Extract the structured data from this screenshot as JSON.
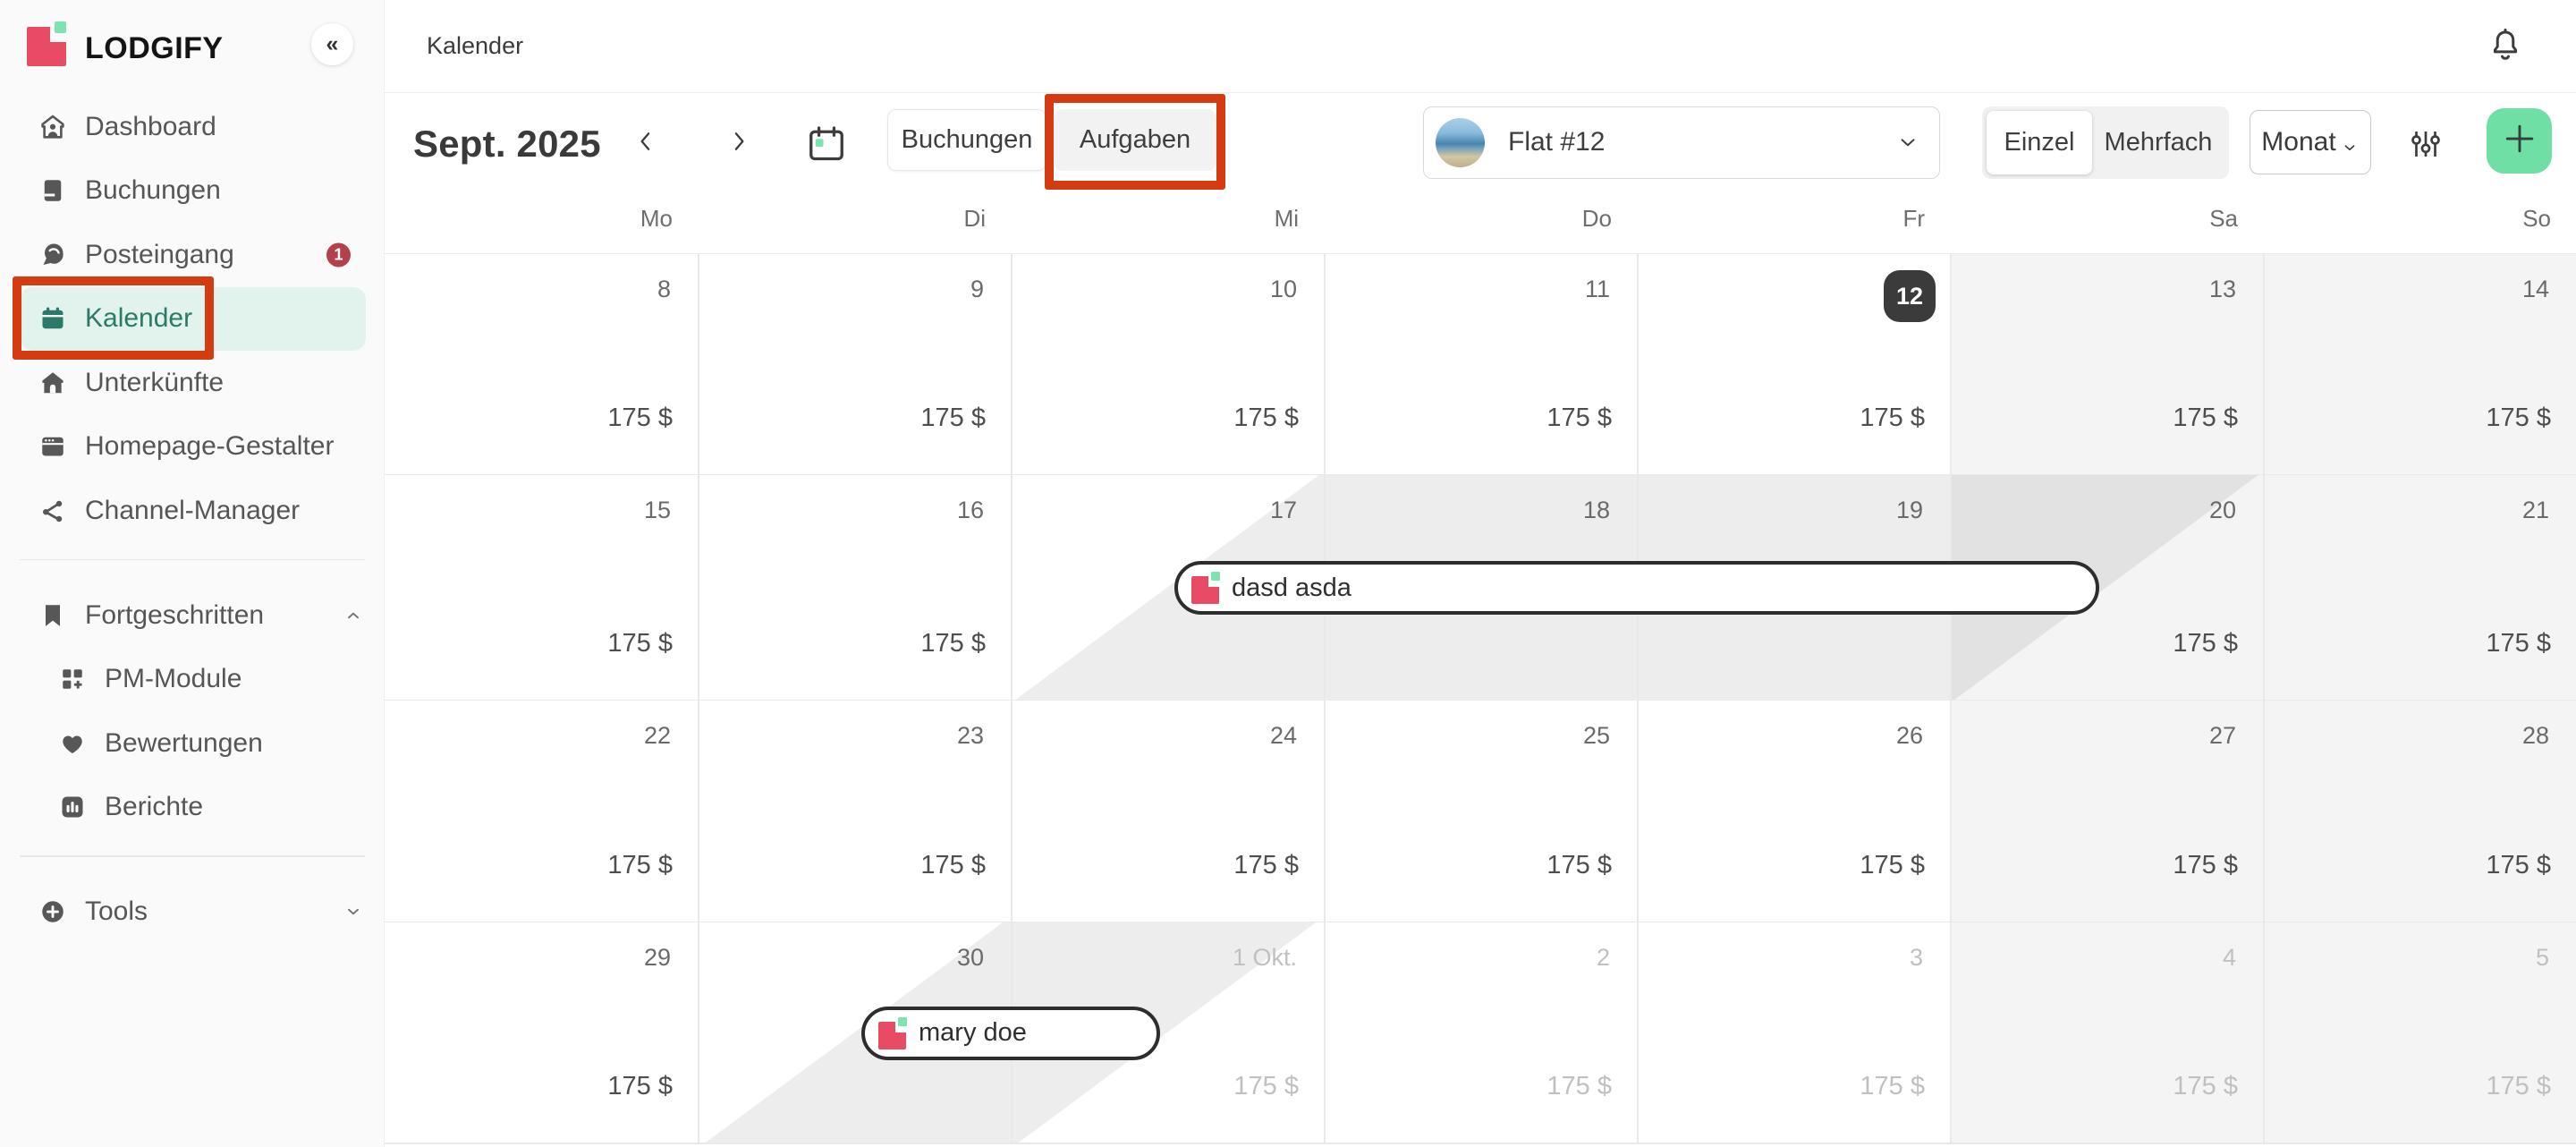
{
  "app": {
    "brand": "LODGIFY",
    "collapse_icon": "chevrons-left-icon"
  },
  "colors": {
    "brand_pink": "#e84c64",
    "brand_green": "#7ce3b1",
    "active_teal": "#2b7a69",
    "active_bg": "#e2f2ec",
    "annotation_red": "#d53b10",
    "badge_red": "#b2414c",
    "add_button_green": "#6fdfa6",
    "today_badge": "#3b3b3b",
    "weekend_bg": "#f4f4f4"
  },
  "sidebar": {
    "items": [
      {
        "id": "dashboard",
        "label": "Dashboard",
        "icon": "dashboard-icon"
      },
      {
        "id": "buchungen",
        "label": "Buchungen",
        "icon": "bookings-icon"
      },
      {
        "id": "posteingang",
        "label": "Posteingang",
        "icon": "inbox-icon",
        "badge": "1"
      },
      {
        "id": "kalender",
        "label": "Kalender",
        "icon": "calendar-icon",
        "active": true
      },
      {
        "id": "unterkuenfte",
        "label": "Unterkünfte",
        "icon": "rentals-icon"
      },
      {
        "id": "homepage-gestalter",
        "label": "Homepage-Gestalter",
        "icon": "website-icon"
      },
      {
        "id": "channel-manager",
        "label": "Channel-Manager",
        "icon": "channel-icon"
      },
      {
        "divider": true
      },
      {
        "id": "fortgeschritten",
        "label": "Fortgeschritten",
        "icon": "bookmark-icon",
        "chevron": "up"
      },
      {
        "id": "pm-module",
        "label": "PM-Module",
        "icon": "modules-icon",
        "sub": true
      },
      {
        "id": "bewertungen",
        "label": "Bewertungen",
        "icon": "reviews-icon",
        "sub": true
      },
      {
        "id": "berichte",
        "label": "Berichte",
        "icon": "reports-icon",
        "sub": true
      },
      {
        "divider": true
      },
      {
        "id": "tools",
        "label": "Tools",
        "icon": "tools-icon",
        "chevron": "down"
      }
    ]
  },
  "topbar": {
    "breadcrumb": "Kalender",
    "bell_icon": "bell-icon"
  },
  "toolbar": {
    "month_label": "Sept. 2025",
    "view_buttons": [
      {
        "label": "Buchungen",
        "active": true
      },
      {
        "label": "Aufgaben",
        "annotated": true
      }
    ],
    "property_select": {
      "label": "Flat #12"
    },
    "mode_tabs": [
      {
        "label": "Einzel",
        "active": true
      },
      {
        "label": "Mehrfach"
      }
    ],
    "period_select": "Monat"
  },
  "calendar": {
    "day_headers": [
      "Mo",
      "Di",
      "Mi",
      "Do",
      "Fr",
      "Sa",
      "So"
    ],
    "weeks": [
      {
        "days": [
          {
            "date": "8",
            "price": "175 $"
          },
          {
            "date": "9",
            "price": "175 $"
          },
          {
            "date": "10",
            "price": "175 $"
          },
          {
            "date": "11",
            "price": "175 $"
          },
          {
            "date": "12",
            "price": "175 $",
            "today": true
          },
          {
            "date": "13",
            "price": "175 $",
            "weekend": true
          },
          {
            "date": "14",
            "price": "175 $",
            "weekend": true
          }
        ]
      },
      {
        "days": [
          {
            "date": "15",
            "price": "175 $"
          },
          {
            "date": "16",
            "price": "175 $"
          },
          {
            "date": "17",
            "price": null
          },
          {
            "date": "18",
            "price": null
          },
          {
            "date": "19",
            "price": null
          },
          {
            "date": "20",
            "price": "175 $",
            "weekend": true
          },
          {
            "date": "21",
            "price": "175 $",
            "weekend": true
          }
        ],
        "booking_span": {
          "start": 2.5,
          "end": 5.5
        },
        "events": [
          {
            "label": "dasd asda",
            "start": 2.5,
            "end": 5.5
          }
        ]
      },
      {
        "days": [
          {
            "date": "22",
            "price": "175 $"
          },
          {
            "date": "23",
            "price": "175 $"
          },
          {
            "date": "24",
            "price": "175 $"
          },
          {
            "date": "25",
            "price": "175 $"
          },
          {
            "date": "26",
            "price": "175 $"
          },
          {
            "date": "27",
            "price": "175 $",
            "weekend": true
          },
          {
            "date": "28",
            "price": "175 $",
            "weekend": true
          }
        ]
      },
      {
        "days": [
          {
            "date": "29",
            "price": "175 $"
          },
          {
            "date": "30",
            "price": null
          },
          {
            "date": "1 Okt.",
            "price": "175 $",
            "muted": true
          },
          {
            "date": "2",
            "price": "175 $",
            "muted": true
          },
          {
            "date": "3",
            "price": "175 $",
            "muted": true
          },
          {
            "date": "4",
            "price": "175 $",
            "muted": true,
            "weekend": true
          },
          {
            "date": "5",
            "price": "175 $",
            "muted": true,
            "weekend": true
          }
        ],
        "booking_span": {
          "start": 1.5,
          "end": 2.5
        },
        "events": [
          {
            "label": "mary doe",
            "start": 1.5,
            "end": 2.5
          }
        ]
      }
    ]
  },
  "annotations": [
    {
      "id": "kalender-nav-highlight",
      "target": "sidebar-item-kalender"
    },
    {
      "id": "aufgaben-button-highlight",
      "target": "aufgaben-button"
    }
  ]
}
